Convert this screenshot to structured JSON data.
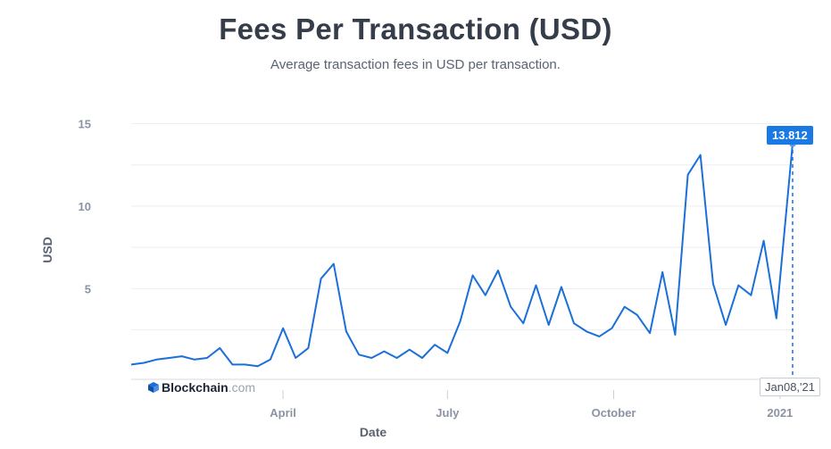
{
  "chart_data": {
    "type": "line",
    "title": "Fees Per Transaction (USD)",
    "subtitle": "Average transaction fees in USD per transaction.",
    "xlabel": "Date",
    "ylabel": "USD",
    "x_ticks": [
      "April",
      "July",
      "October",
      "2021"
    ],
    "y_ticks": [
      "5",
      "10",
      "15"
    ],
    "ylim": [
      -0.5,
      16
    ],
    "grid": true,
    "series": [
      {
        "color": "#1a6fd8",
        "x": [
          "2020-01-08",
          "2020-01-15",
          "2020-01-22",
          "2020-01-29",
          "2020-02-05",
          "2020-02-12",
          "2020-02-19",
          "2020-02-26",
          "2020-03-04",
          "2020-03-11",
          "2020-03-18",
          "2020-03-25",
          "2020-04-01",
          "2020-04-08",
          "2020-04-15",
          "2020-04-22",
          "2020-04-29",
          "2020-05-06",
          "2020-05-13",
          "2020-05-20",
          "2020-05-27",
          "2020-06-03",
          "2020-06-10",
          "2020-06-17",
          "2020-06-24",
          "2020-07-01",
          "2020-07-08",
          "2020-07-15",
          "2020-07-22",
          "2020-07-29",
          "2020-08-05",
          "2020-08-12",
          "2020-08-19",
          "2020-08-26",
          "2020-09-02",
          "2020-09-09",
          "2020-09-16",
          "2020-09-23",
          "2020-09-30",
          "2020-10-07",
          "2020-10-14",
          "2020-10-21",
          "2020-10-28",
          "2020-11-04",
          "2020-11-11",
          "2020-11-18",
          "2020-11-25",
          "2020-12-02",
          "2020-12-09",
          "2020-12-16",
          "2020-12-23",
          "2020-12-30",
          "2021-01-08"
        ],
        "values": [
          0.4,
          0.5,
          0.7,
          0.8,
          0.9,
          0.7,
          0.8,
          1.4,
          0.4,
          0.4,
          0.3,
          0.7,
          2.6,
          0.8,
          1.4,
          5.6,
          6.5,
          2.4,
          1.0,
          0.8,
          1.2,
          0.8,
          1.3,
          0.8,
          1.6,
          1.1,
          3.0,
          5.8,
          4.6,
          6.1,
          3.9,
          2.9,
          5.2,
          2.8,
          5.1,
          2.9,
          2.4,
          2.1,
          2.6,
          3.9,
          3.4,
          2.3,
          6.0,
          2.2,
          11.9,
          13.1,
          5.3,
          2.8,
          5.2,
          4.6,
          7.9,
          3.2,
          13.8
        ]
      }
    ]
  },
  "tooltip": {
    "value": "13.812"
  },
  "cursor_label": "Jan08,'21",
  "brand": {
    "name": "Blockchain",
    "suffix": ".com",
    "color": "#1a6fd8"
  }
}
